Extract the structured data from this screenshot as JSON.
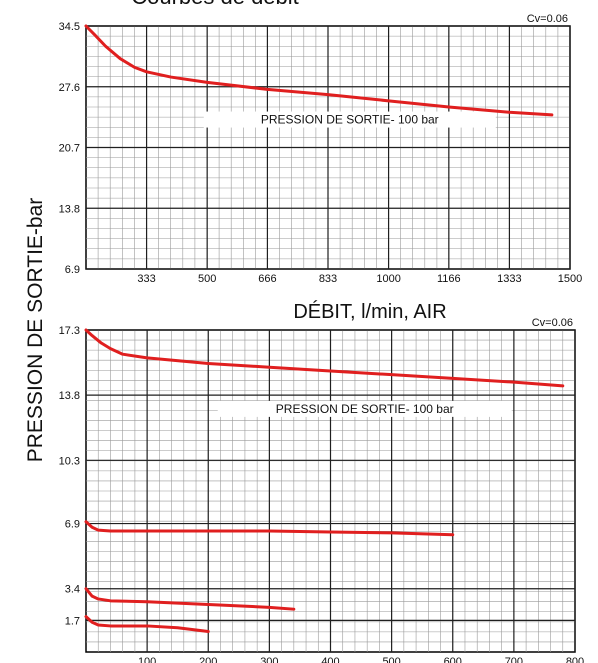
{
  "title": "Courbes de débit",
  "ylabel": "PRESSION DE SORTIE-bar",
  "chart_data": [
    {
      "type": "line",
      "title": "Courbes de débit",
      "xlabel": "DÉBIT,   l/min,  AIR",
      "ylabel": "PRESSION DE SORTIE-bar",
      "cv_label": "Cv=0.06",
      "annotation": "PRESSION DE SORTIE- 100 bar",
      "x_ticks": [
        333,
        500,
        666,
        833,
        1000,
        1166,
        1333,
        1500
      ],
      "y_ticks": [
        6.9,
        13.8,
        20.7,
        27.6,
        34.5
      ],
      "xlim": [
        166,
        1500
      ],
      "ylim": [
        6.9,
        34.5
      ],
      "grid": true,
      "series": [
        {
          "x": [
            166,
            190,
            220,
            260,
            300,
            333,
            400,
            500,
            666,
            833,
            1000,
            1166,
            1333,
            1450
          ],
          "y": [
            34.5,
            33.5,
            32.2,
            30.8,
            29.8,
            29.3,
            28.7,
            28.1,
            27.3,
            26.7,
            26.0,
            25.3,
            24.7,
            24.4
          ],
          "color": "#e01f1f"
        }
      ]
    },
    {
      "type": "line",
      "cv_label": "Cv=0.06",
      "annotation": "PRESSION DE SORTIE- 100 bar",
      "x_ticks": [
        100,
        200,
        300,
        400,
        500,
        600,
        700,
        800
      ],
      "y_ticks": [
        1.7,
        3.4,
        6.9,
        10.3,
        13.8,
        17.3
      ],
      "xlim": [
        0,
        800
      ],
      "ylim": [
        0,
        17.3
      ],
      "grid": true,
      "series": [
        {
          "x": [
            0,
            10,
            25,
            40,
            60,
            100,
            200,
            300,
            400,
            500,
            600,
            700,
            780
          ],
          "y": [
            17.3,
            17.0,
            16.6,
            16.3,
            16.0,
            15.8,
            15.5,
            15.3,
            15.1,
            14.9,
            14.7,
            14.5,
            14.3
          ],
          "color": "#e01f1f"
        },
        {
          "x": [
            0,
            10,
            20,
            40,
            100,
            200,
            300,
            400,
            500,
            600
          ],
          "y": [
            7.0,
            6.7,
            6.55,
            6.5,
            6.5,
            6.5,
            6.5,
            6.45,
            6.4,
            6.3
          ],
          "color": "#e01f1f"
        },
        {
          "x": [
            0,
            10,
            20,
            40,
            100,
            200,
            300,
            340
          ],
          "y": [
            3.4,
            3.0,
            2.85,
            2.75,
            2.7,
            2.55,
            2.4,
            2.3
          ],
          "color": "#e01f1f"
        },
        {
          "x": [
            0,
            10,
            20,
            40,
            100,
            150,
            200
          ],
          "y": [
            1.9,
            1.6,
            1.45,
            1.4,
            1.4,
            1.3,
            1.1
          ],
          "color": "#e01f1f"
        }
      ]
    }
  ]
}
